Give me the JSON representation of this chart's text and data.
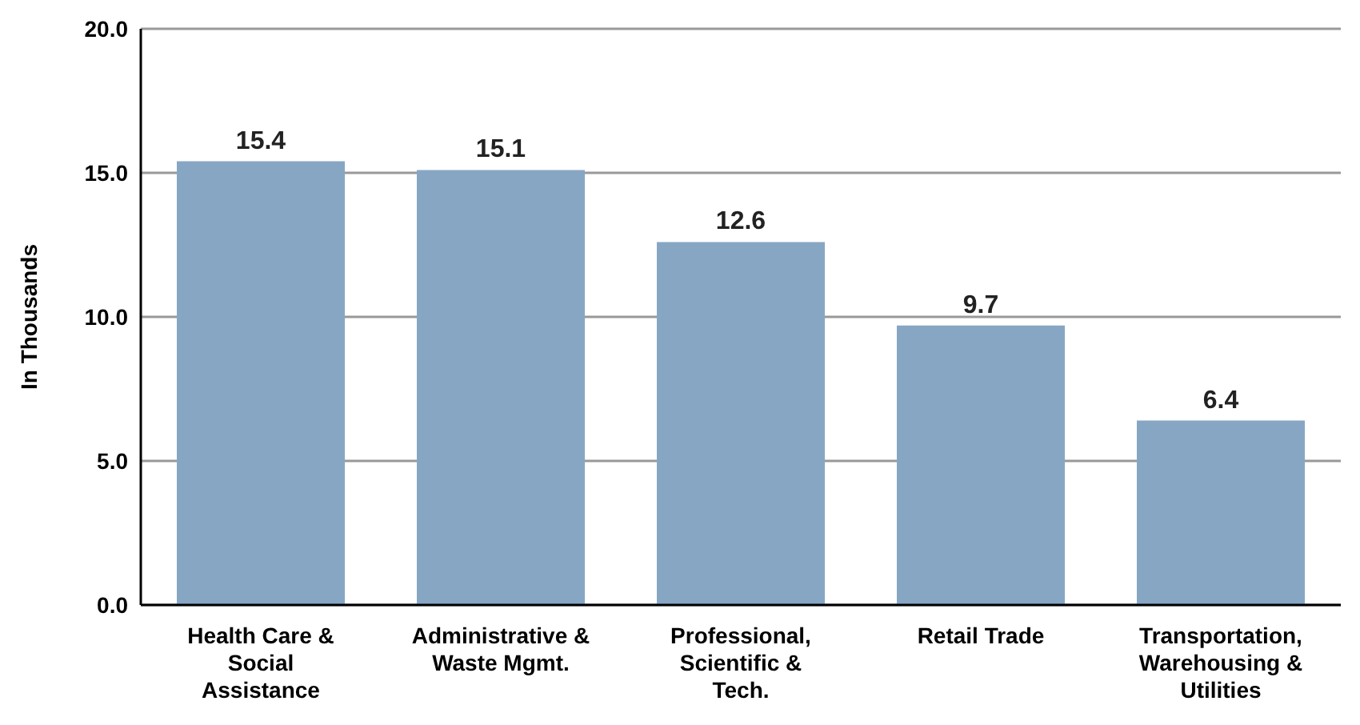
{
  "chart_data": {
    "type": "bar",
    "ylabel": "In Thousands",
    "categories": [
      "Health Care & Social Assistance",
      "Administrative & Waste Mgmt.",
      "Professional, Scientific & Tech.",
      "Retail Trade",
      "Transportation, Warehousing & Utilities"
    ],
    "values": [
      15.4,
      15.1,
      12.6,
      9.7,
      6.4
    ],
    "color": "#87a6c4",
    "ylim": [
      0,
      20
    ],
    "yticks": [
      {
        "value": 0,
        "label": "0.0"
      },
      {
        "value": 5,
        "label": "5.0"
      },
      {
        "value": 10,
        "label": "10.0"
      },
      {
        "value": 15,
        "label": "15.0"
      },
      {
        "value": 20,
        "label": "20.0"
      }
    ],
    "grid": "y",
    "data_labels": true
  }
}
